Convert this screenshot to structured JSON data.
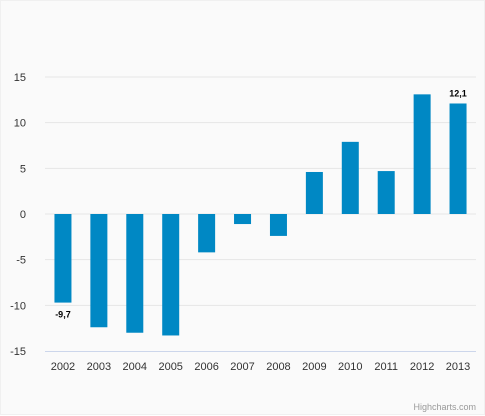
{
  "chart_data": {
    "type": "bar",
    "categories": [
      "2002",
      "2003",
      "2004",
      "2005",
      "2006",
      "2007",
      "2008",
      "2009",
      "2010",
      "2011",
      "2012",
      "2013"
    ],
    "values": [
      -9.7,
      -12.4,
      -13.0,
      -13.3,
      -4.2,
      -1.1,
      -2.4,
      4.6,
      7.9,
      4.7,
      13.1,
      12.1
    ],
    "data_labels": [
      {
        "category": "2002",
        "text": "-9,7"
      },
      {
        "category": "2013",
        "text": "12,1"
      }
    ],
    "ylim": [
      -15,
      15
    ],
    "y_ticks": [
      {
        "value": 15,
        "label": "15"
      },
      {
        "value": 10,
        "label": "10"
      },
      {
        "value": 5,
        "label": "5"
      },
      {
        "value": 0,
        "label": "0"
      },
      {
        "value": -5,
        "label": "-5"
      },
      {
        "value": -10,
        "label": "-10"
      },
      {
        "value": -15,
        "label": "-15"
      }
    ],
    "grid": true,
    "legend": "none",
    "bar_color": "#0088c4",
    "grid_color": "#e6e6e6",
    "axis_line_color": "#ccd6eb"
  },
  "credits": "Highcharts.com"
}
